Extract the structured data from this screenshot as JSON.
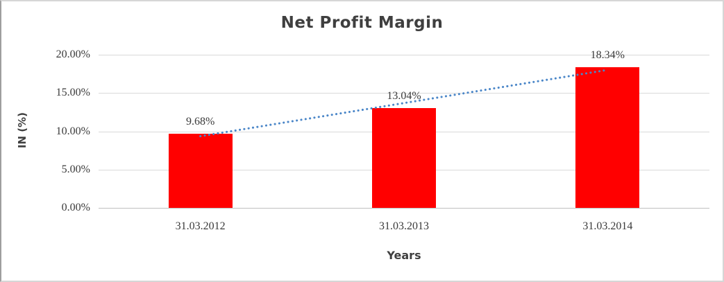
{
  "chart_data": {
    "type": "bar",
    "title": "Net Profit Margin",
    "xlabel": "Years",
    "ylabel": "IN (%)",
    "categories": [
      "31.03.2012",
      "31.03.2013",
      "31.03.2014"
    ],
    "series": [
      {
        "name": "Net Profit Margin",
        "values": [
          9.68,
          13.04,
          18.34
        ]
      }
    ],
    "data_labels": [
      "9.68%",
      "13.04%",
      "18.34%"
    ],
    "ylim": [
      0,
      20
    ],
    "yticks": [
      {
        "value": 20,
        "label": "20.00%"
      },
      {
        "value": 15,
        "label": "15.00%"
      },
      {
        "value": 10,
        "label": "10.00%"
      },
      {
        "value": 5,
        "label": "5.00%"
      },
      {
        "value": 0,
        "label": "0.00%"
      }
    ],
    "grid": true,
    "legend": "none",
    "bar_color": "#ff0000",
    "gridline_color": "#d9d9d9",
    "axis_line_color": "#bfbfbf",
    "text_color": "#3a3a3a",
    "title_color": "#3f3f3f",
    "trendline": {
      "type": "linear",
      "style": "dotted",
      "color": "#4a86c8",
      "start_value": 9.36,
      "end_value": 18.02
    }
  }
}
